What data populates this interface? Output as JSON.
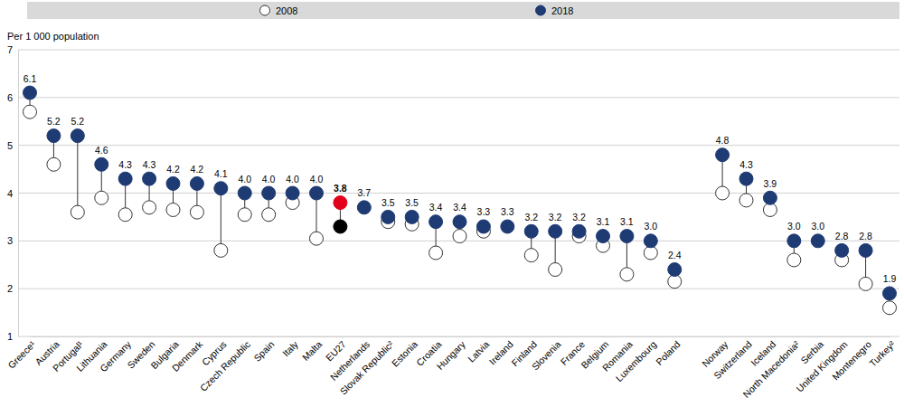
{
  "chart_data": {
    "type": "dumbbell",
    "y_label": "Per 1 000 population",
    "categories": [
      "Greece¹",
      "Austria",
      "Portugal¹",
      "Lithuania",
      "Germany",
      "Sweden",
      "Bulgaria",
      "Denmark",
      "Cyprus",
      "Czech Republic",
      "Spain",
      "Italy",
      "Malta",
      "EU27",
      "Netherlands",
      "Slovak Republic²",
      "Estonia",
      "Croatia",
      "Hungary",
      "Latvia",
      "Ireland",
      "Finland",
      "Slovenia",
      "France",
      "Belgium",
      "Romania",
      "Luxembourg",
      "Poland",
      null,
      "Norway",
      "Switzerland",
      "Iceland",
      "North Macedonia²",
      "Serbia",
      "United Kingdom",
      "Montenegro",
      "Turkey²"
    ],
    "series": [
      {
        "name": "2008",
        "color": "#ffffff",
        "marker": "circle-open",
        "colors": [
          "#ffffff",
          "#ffffff",
          "#ffffff",
          "#ffffff",
          "#ffffff",
          "#ffffff",
          "#ffffff",
          "#ffffff",
          "#ffffff",
          "#ffffff",
          "#ffffff",
          "#ffffff",
          "#ffffff",
          "#000000",
          "#ffffff",
          "#ffffff",
          "#ffffff",
          "#ffffff",
          "#ffffff",
          "#ffffff",
          "#ffffff",
          "#ffffff",
          "#ffffff",
          "#ffffff",
          "#ffffff",
          "#ffffff",
          "#ffffff",
          "#ffffff",
          "#ffffff",
          "#ffffff",
          "#ffffff",
          "#ffffff",
          "#ffffff",
          "#ffffff",
          "#ffffff",
          "#ffffff",
          "#ffffff"
        ],
        "values": [
          5.7,
          4.6,
          3.6,
          3.9,
          3.55,
          3.7,
          3.65,
          3.6,
          2.8,
          3.55,
          3.55,
          3.8,
          3.05,
          3.3,
          null,
          3.4,
          3.35,
          2.75,
          3.1,
          3.2,
          null,
          2.7,
          2.4,
          3.1,
          2.9,
          2.3,
          2.75,
          2.15,
          null,
          4.0,
          3.85,
          3.65,
          2.6,
          null,
          2.6,
          2.1,
          1.6
        ]
      },
      {
        "name": "2018",
        "color": "#1f3b73",
        "marker": "circle",
        "data_labels": true,
        "colors": [
          "#1f3b73",
          "#1f3b73",
          "#1f3b73",
          "#1f3b73",
          "#1f3b73",
          "#1f3b73",
          "#1f3b73",
          "#1f3b73",
          "#1f3b73",
          "#1f3b73",
          "#1f3b73",
          "#1f3b73",
          "#1f3b73",
          "#e2001a",
          "#1f3b73",
          "#1f3b73",
          "#1f3b73",
          "#1f3b73",
          "#1f3b73",
          "#1f3b73",
          "#1f3b73",
          "#1f3b73",
          "#1f3b73",
          "#1f3b73",
          "#1f3b73",
          "#1f3b73",
          "#1f3b73",
          "#1f3b73",
          "#1f3b73",
          "#1f3b73",
          "#1f3b73",
          "#1f3b73",
          "#1f3b73",
          "#1f3b73",
          "#1f3b73",
          "#1f3b73",
          "#1f3b73"
        ],
        "values": [
          6.1,
          5.2,
          5.2,
          4.6,
          4.3,
          4.3,
          4.2,
          4.2,
          4.1,
          4.0,
          4.0,
          4.0,
          4.0,
          3.8,
          3.7,
          3.5,
          3.5,
          3.4,
          3.4,
          3.3,
          3.3,
          3.2,
          3.2,
          3.2,
          3.1,
          3.1,
          3.0,
          2.4,
          null,
          4.8,
          4.3,
          3.9,
          3.0,
          3.0,
          2.8,
          2.8,
          1.9
        ],
        "value_labels": [
          "6.1",
          "5.2",
          "5.2",
          "4.6",
          "4.3",
          "4.3",
          "4.2",
          "4.2",
          "4.1",
          "4.0",
          "4.0",
          "4.0",
          "4.0",
          "3.8",
          "3.7",
          "3.5",
          "3.5",
          "3.4",
          "3.4",
          "3.3",
          "3.3",
          "3.2",
          "3.2",
          "3.2",
          "3.1",
          "3.1",
          "3.0",
          "2.4",
          null,
          "4.8",
          "4.3",
          "3.9",
          "3.0",
          "3.0",
          "2.8",
          "2.8",
          "1.9"
        ]
      }
    ],
    "ylim": [
      1,
      7
    ],
    "yticks": [
      1,
      2,
      3,
      4,
      5,
      6,
      7
    ],
    "grid": true,
    "legend": "top"
  }
}
